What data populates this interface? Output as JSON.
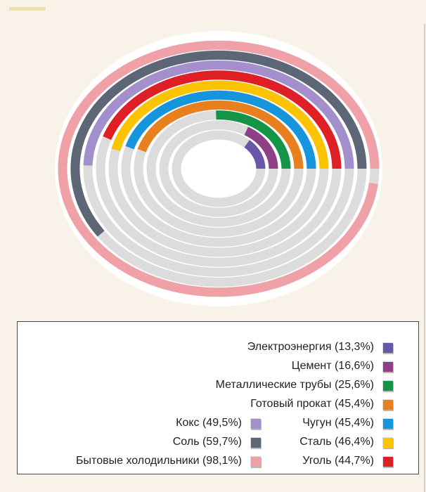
{
  "chart_data": {
    "type": "radial-bar",
    "title": "",
    "max_percent": 100,
    "series": [
      {
        "name": "Электроэнергия",
        "label": "Электроэнергия (13,3%)",
        "value": 13.3,
        "color": "#6b57a8"
      },
      {
        "name": "Цемент",
        "label": "Цемент (16,6%)",
        "value": 16.6,
        "color": "#8e3f86"
      },
      {
        "name": "Металлические трубы",
        "label": "Металлические трубы (25,6%)",
        "value": 25.6,
        "color": "#139447"
      },
      {
        "name": "Готовый прокат",
        "label": "Готовый прокат (45,4%)",
        "value": 45.4,
        "color": "#e98020"
      },
      {
        "name": "Чугун",
        "label": "Чугун (45,4%)",
        "value": 45.4,
        "color": "#1596dc"
      },
      {
        "name": "Сталь",
        "label": "Сталь (46,4%)",
        "value": 46.4,
        "color": "#fcc400"
      },
      {
        "name": "Уголь",
        "label": "Уголь (44,7%)",
        "value": 44.7,
        "color": "#df1f26"
      },
      {
        "name": "Кокс",
        "label": "Кокс (49,5%)",
        "value": 49.5,
        "color": "#a48fcd"
      },
      {
        "name": "Соль",
        "label": "Соль (59,7%)",
        "value": 59.7,
        "color": "#5d6677"
      },
      {
        "name": "Бытовые холодильники",
        "label": "Бытовые холодильники (98,1%)",
        "value": 98.1,
        "color": "#f0a1a8"
      }
    ],
    "track_color": "#dcdcdc",
    "legend_position": "bottom"
  },
  "colors": {
    "background": "#f8f2e8",
    "ring_gap": "#ffffff",
    "legend_border": "#4a4a4a"
  }
}
